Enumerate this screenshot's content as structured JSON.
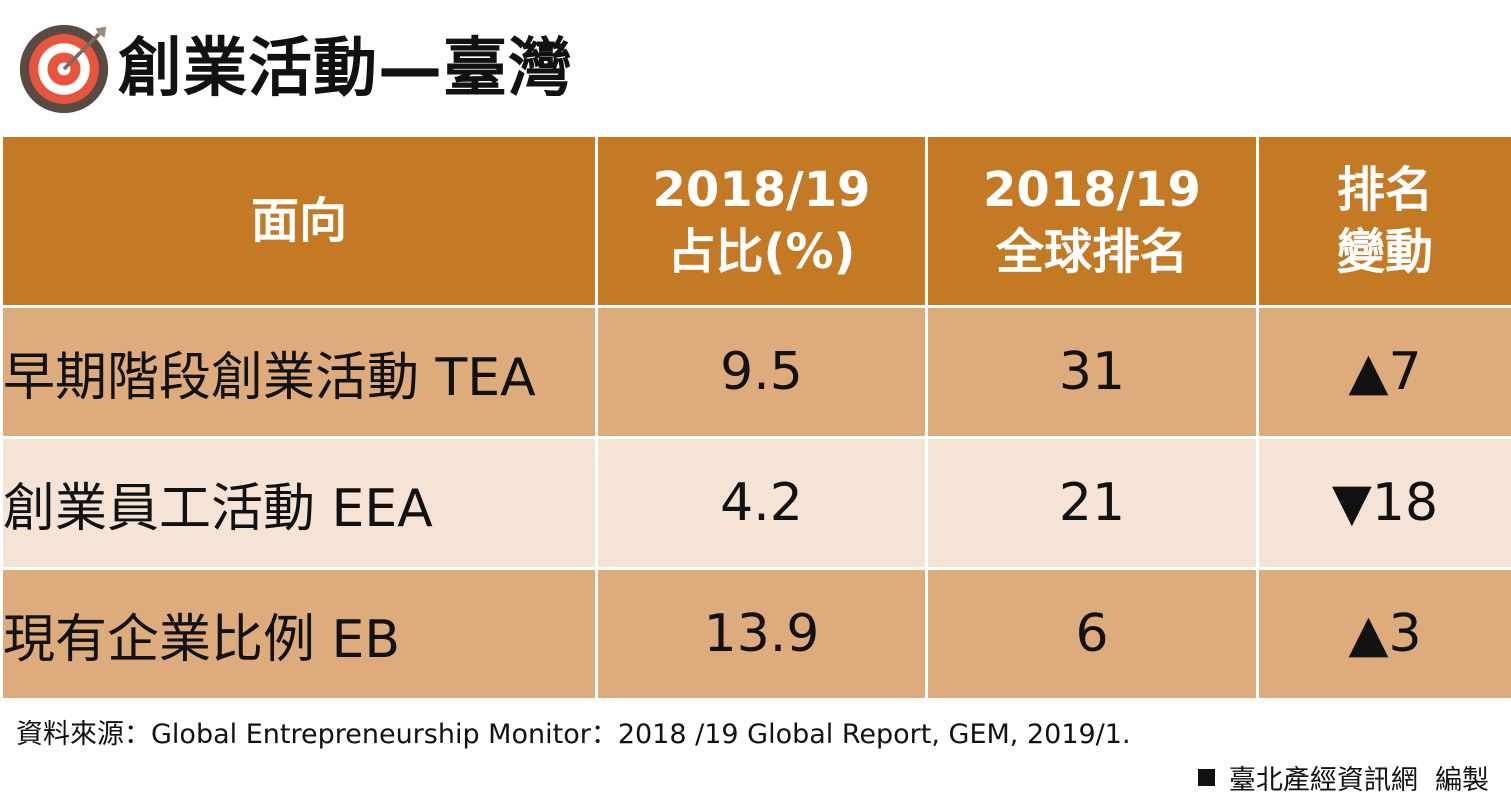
{
  "header": {
    "title": "創業活動—臺灣",
    "icon": "target-icon",
    "icon_colors": {
      "ring_outer": "#e8553e",
      "ring_inner": "#ffffff",
      "bg": "#5a4a42"
    }
  },
  "table": {
    "columns": {
      "aspect": "面向",
      "share_line1": "2018/19",
      "share_line2": "占比(%)",
      "rank_line1": "2018/19",
      "rank_line2": "全球排名",
      "change_line1": "排名",
      "change_line2": "變動"
    },
    "rows": [
      {
        "aspect": "早期階段創業活動 TEA",
        "share": "9.5",
        "rank": "31",
        "change": "▲7",
        "direction": "up"
      },
      {
        "aspect": "創業員工活動 EEA",
        "share": "4.2",
        "rank": "21",
        "change": "▼18",
        "direction": "down"
      },
      {
        "aspect": "現有企業比例 EB",
        "share": "13.9",
        "rank": "6",
        "change": "▲3",
        "direction": "up"
      }
    ],
    "colors": {
      "header_bg": "#c47a25",
      "row_dark": "#deac7c",
      "row_light": "#f5e4d5",
      "up": "#ee1111",
      "down": "#111111"
    }
  },
  "footer": {
    "source": "資料來源：Global Entrepreneurship Monitor：2018 /19 Global Report, GEM, 2019/1.",
    "credit": "臺北產經資訊網  編製",
    "credit_icon": "black-square-icon"
  }
}
